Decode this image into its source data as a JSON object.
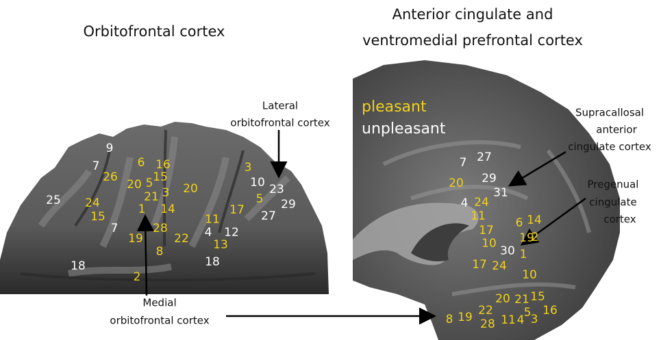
{
  "titles": {
    "left": "Orbitofrontal cortex",
    "right": [
      "Anterior cingulate and",
      "ventromedial prefrontal cortex"
    ]
  },
  "legend": {
    "pleasant": "pleasant",
    "unpleasant": "unpleasant"
  },
  "annotations": {
    "lateral": [
      "Lateral",
      "orbitofrontal cortex"
    ],
    "medial": [
      "Medial",
      "orbitofrontal cortex"
    ],
    "supracallosal": [
      "Supracallosal",
      "anterior",
      "cingulate cortex"
    ],
    "pregenual": [
      "Pregenual",
      "cingulate",
      "cortex"
    ]
  },
  "left_labels": [
    {
      "text": "9",
      "kind": "unpleasant"
    },
    {
      "text": "7",
      "kind": "unpleasant"
    },
    {
      "text": "6",
      "kind": "pleasant"
    },
    {
      "text": "16",
      "kind": "pleasant"
    },
    {
      "text": "26",
      "kind": "pleasant"
    },
    {
      "text": "20",
      "kind": "pleasant"
    },
    {
      "text": "5",
      "kind": "pleasant"
    },
    {
      "text": "15",
      "kind": "pleasant"
    },
    {
      "text": "21",
      "kind": "pleasant"
    },
    {
      "text": "3",
      "kind": "pleasant"
    },
    {
      "text": "20",
      "kind": "pleasant"
    },
    {
      "text": "3",
      "kind": "pleasant"
    },
    {
      "text": "10",
      "kind": "unpleasant"
    },
    {
      "text": "23",
      "kind": "unpleasant"
    },
    {
      "text": "5",
      "kind": "pleasant"
    },
    {
      "text": "29",
      "kind": "unpleasant"
    },
    {
      "text": "25",
      "kind": "unpleasant"
    },
    {
      "text": "24",
      "kind": "pleasant"
    },
    {
      "text": "15",
      "kind": "pleasant"
    },
    {
      "text": "1",
      "kind": "pleasant"
    },
    {
      "text": "14",
      "kind": "pleasant"
    },
    {
      "text": "17",
      "kind": "pleasant"
    },
    {
      "text": "11",
      "kind": "pleasant"
    },
    {
      "text": "27",
      "kind": "unpleasant"
    },
    {
      "text": "7",
      "kind": "unpleasant"
    },
    {
      "text": "19",
      "kind": "pleasant"
    },
    {
      "text": "28",
      "kind": "pleasant"
    },
    {
      "text": "22",
      "kind": "pleasant"
    },
    {
      "text": "4",
      "kind": "unpleasant"
    },
    {
      "text": "12",
      "kind": "unpleasant"
    },
    {
      "text": "13",
      "kind": "pleasant"
    },
    {
      "text": "8",
      "kind": "pleasant"
    },
    {
      "text": "18",
      "kind": "unpleasant"
    },
    {
      "text": "18",
      "kind": "unpleasant"
    },
    {
      "text": "2",
      "kind": "pleasant"
    }
  ],
  "right_labels": [
    {
      "text": "7",
      "kind": "unpleasant"
    },
    {
      "text": "27",
      "kind": "unpleasant"
    },
    {
      "text": "20",
      "kind": "pleasant"
    },
    {
      "text": "29",
      "kind": "unpleasant"
    },
    {
      "text": "31",
      "kind": "unpleasant"
    },
    {
      "text": "4",
      "kind": "unpleasant"
    },
    {
      "text": "24",
      "kind": "pleasant"
    },
    {
      "text": "11",
      "kind": "pleasant"
    },
    {
      "text": "17",
      "kind": "pleasant"
    },
    {
      "text": "6",
      "kind": "pleasant"
    },
    {
      "text": "14",
      "kind": "pleasant"
    },
    {
      "text": "10",
      "kind": "pleasant"
    },
    {
      "text": "19",
      "kind": "pleasant"
    },
    {
      "text": "2",
      "kind": "pleasant"
    },
    {
      "text": "30",
      "kind": "unpleasant"
    },
    {
      "text": "1",
      "kind": "pleasant"
    },
    {
      "text": "17",
      "kind": "pleasant"
    },
    {
      "text": "24",
      "kind": "pleasant"
    },
    {
      "text": "10",
      "kind": "pleasant"
    },
    {
      "text": "20",
      "kind": "pleasant"
    },
    {
      "text": "21",
      "kind": "pleasant"
    },
    {
      "text": "15",
      "kind": "pleasant"
    },
    {
      "text": "16",
      "kind": "pleasant"
    },
    {
      "text": "8",
      "kind": "pleasant"
    },
    {
      "text": "19",
      "kind": "pleasant"
    },
    {
      "text": "22",
      "kind": "pleasant"
    },
    {
      "text": "28",
      "kind": "pleasant"
    },
    {
      "text": "11",
      "kind": "pleasant"
    },
    {
      "text": "4",
      "kind": "pleasant"
    },
    {
      "text": "5",
      "kind": "pleasant"
    },
    {
      "text": "3",
      "kind": "pleasant"
    }
  ]
}
